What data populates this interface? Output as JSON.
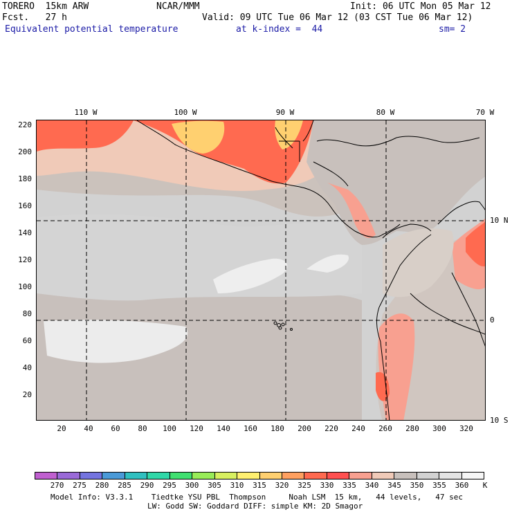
{
  "header": {
    "model": "TORERO  15km ARW",
    "org": "NCAR/MMM",
    "init": "Init: 06 UTC Mon 05 Mar 12",
    "fcst": "Fcst.   27 h",
    "valid": "Valid: 09 UTC Tue 06 Mar 12 (03 CST Tue 06 Mar 12)",
    "field": "Equivalent potential temperature",
    "level": "at k-index =  44",
    "smooth": "sm= 2"
  },
  "map": {
    "lon_labels": [
      "110 W",
      "100 W",
      "90 W",
      "80 W",
      "70 W"
    ],
    "lat_labels": [
      "10 N",
      "0",
      "10 S"
    ],
    "y_ticks": [
      "220",
      "200",
      "180",
      "160",
      "140",
      "120",
      "100",
      "80",
      "60",
      "40",
      "20"
    ],
    "x_ticks": [
      "20",
      "40",
      "60",
      "80",
      "100",
      "120",
      "140",
      "160",
      "180",
      "200",
      "220",
      "240",
      "260",
      "280",
      "300",
      "320"
    ]
  },
  "colorbar": {
    "labels": [
      "270",
      "275",
      "280",
      "285",
      "290",
      "295",
      "300",
      "305",
      "310",
      "315",
      "320",
      "325",
      "330",
      "335",
      "340",
      "345",
      "350",
      "355",
      "360"
    ],
    "unit": "K",
    "colors": [
      "#c060d0",
      "#9a6ad8",
      "#7474e0",
      "#4a9ad8",
      "#30c0c0",
      "#30d8a8",
      "#40e070",
      "#98ec58",
      "#d8f060",
      "#fff070",
      "#ffd070",
      "#ffa060",
      "#ff6a50",
      "#ff5050",
      "#f8a090",
      "#f0cab8",
      "#c8c0bc",
      "#d2d2d2",
      "#e4e4e4",
      "#f6f6f6"
    ]
  },
  "footer": {
    "line1": "Model Info: V3.3.1    Tiedtke YSU PBL  Thompson     Noah LSM  15 km,   44 levels,   47 sec",
    "line2": "LW: Godd SW: Goddard DIFF: simple KM: 2D Smagor"
  }
}
